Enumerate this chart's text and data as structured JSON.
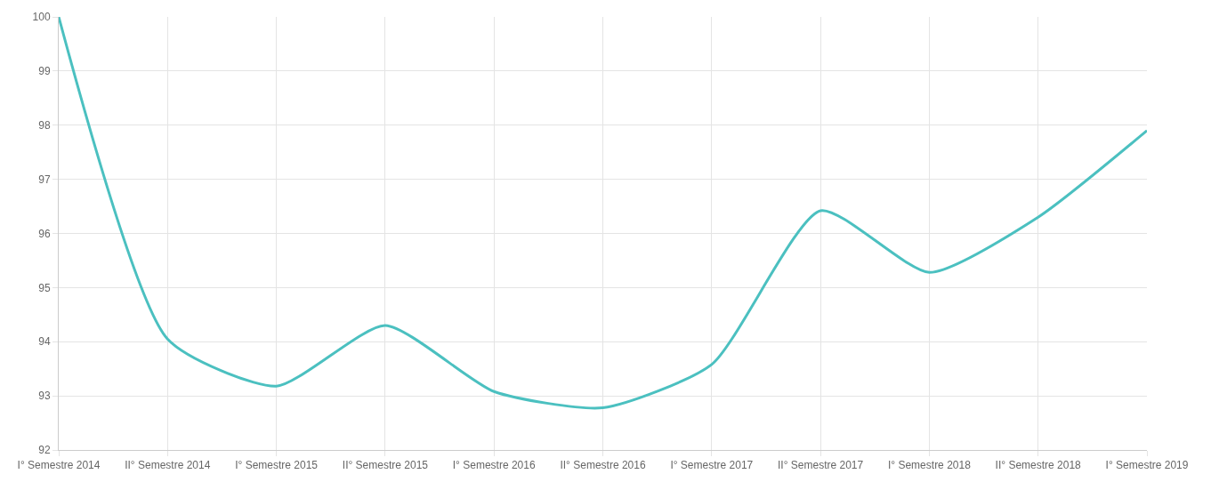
{
  "chart_data": {
    "type": "line",
    "categories": [
      "I° Semestre 2014",
      "II° Semestre 2014",
      "I° Semestre 2015",
      "II° Semestre 2015",
      "I° Semestre 2016",
      "II° Semestre 2016",
      "I° Semestre 2017",
      "II° Semestre 2017",
      "I° Semestre 2018",
      "II° Semestre 2018",
      "I° Semestre 2019"
    ],
    "series": [
      {
        "color": "#4bc0c0",
        "values": [
          100,
          94.05,
          93.18,
          94.3,
          93.08,
          92.78,
          93.58,
          96.42,
          95.28,
          96.3,
          97.9
        ]
      }
    ],
    "ylim": [
      92,
      100
    ],
    "yticks": [
      92,
      93,
      94,
      95,
      96,
      97,
      98,
      99,
      100
    ],
    "grid": true,
    "marker": "none",
    "line_style": "solid"
  }
}
